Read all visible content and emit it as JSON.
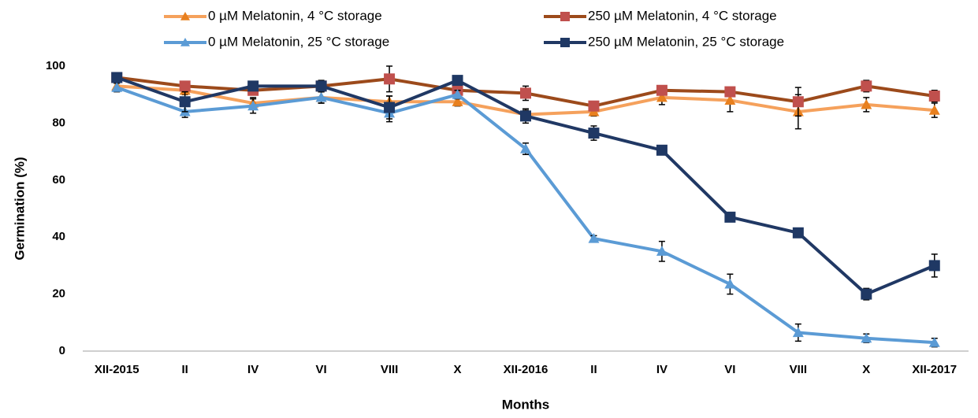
{
  "chart_data": {
    "type": "line",
    "x_label": "Months",
    "y_label": "Germination (%)",
    "categories": [
      "XII-2015",
      "II",
      "IV",
      "VI",
      "VIII",
      "X",
      "XII-2016",
      "II",
      "IV",
      "VI",
      "VIII",
      "X",
      "XII-2017"
    ],
    "ylim": [
      0,
      100
    ],
    "yticks": [
      0,
      20,
      40,
      60,
      80,
      100
    ],
    "grid": false,
    "series": [
      {
        "name": "0 µM Melatonin, 4 °C storage",
        "color": "#f5a15c",
        "marker": "triangle",
        "marker_color": "#e8801f",
        "values": [
          93,
          91.5,
          87,
          89,
          87.5,
          87.5,
          83,
          84,
          89,
          88,
          84,
          86.5,
          84.5
        ],
        "errors": [
          1.5,
          1.5,
          2,
          2,
          2,
          1.5,
          1.5,
          1.5,
          2.5,
          4,
          6,
          2.5,
          2.5
        ]
      },
      {
        "name": "250 µM Melatonin, 4 °C storage",
        "color": "#9c4a1b",
        "marker": "square",
        "marker_color": "#c0504d",
        "values": [
          96,
          93,
          91.5,
          93,
          95.5,
          91.5,
          90.5,
          86,
          91.5,
          91,
          87.5,
          93,
          89.5
        ],
        "errors": [
          1.5,
          1.5,
          1.5,
          1.5,
          4.5,
          1.5,
          2.5,
          1.5,
          1.5,
          1.5,
          5,
          2,
          2
        ]
      },
      {
        "name": "0 µM Melatonin, 25 °C storage",
        "color": "#5b9bd5",
        "marker": "triangle",
        "marker_color": "#5b9bd5",
        "values": [
          92.5,
          84,
          86,
          89,
          83.5,
          90,
          71,
          39.5,
          35,
          23.5,
          6.5,
          4.5,
          3
        ],
        "errors": [
          1.5,
          2,
          2.5,
          2,
          3,
          1.5,
          2,
          1,
          3.5,
          3.5,
          3,
          1.5,
          1.5
        ]
      },
      {
        "name": "250 µM Melatonin, 25 °C storage",
        "color": "#203864",
        "marker": "square",
        "marker_color": "#1f3864",
        "values": [
          96,
          87.5,
          93,
          93,
          85.5,
          95,
          82.5,
          76.5,
          70.5,
          47,
          41.5,
          20,
          30
        ],
        "errors": [
          1,
          3.5,
          1.5,
          2,
          4,
          1.5,
          2.5,
          2.5,
          1,
          1,
          1,
          2,
          4
        ]
      }
    ]
  }
}
